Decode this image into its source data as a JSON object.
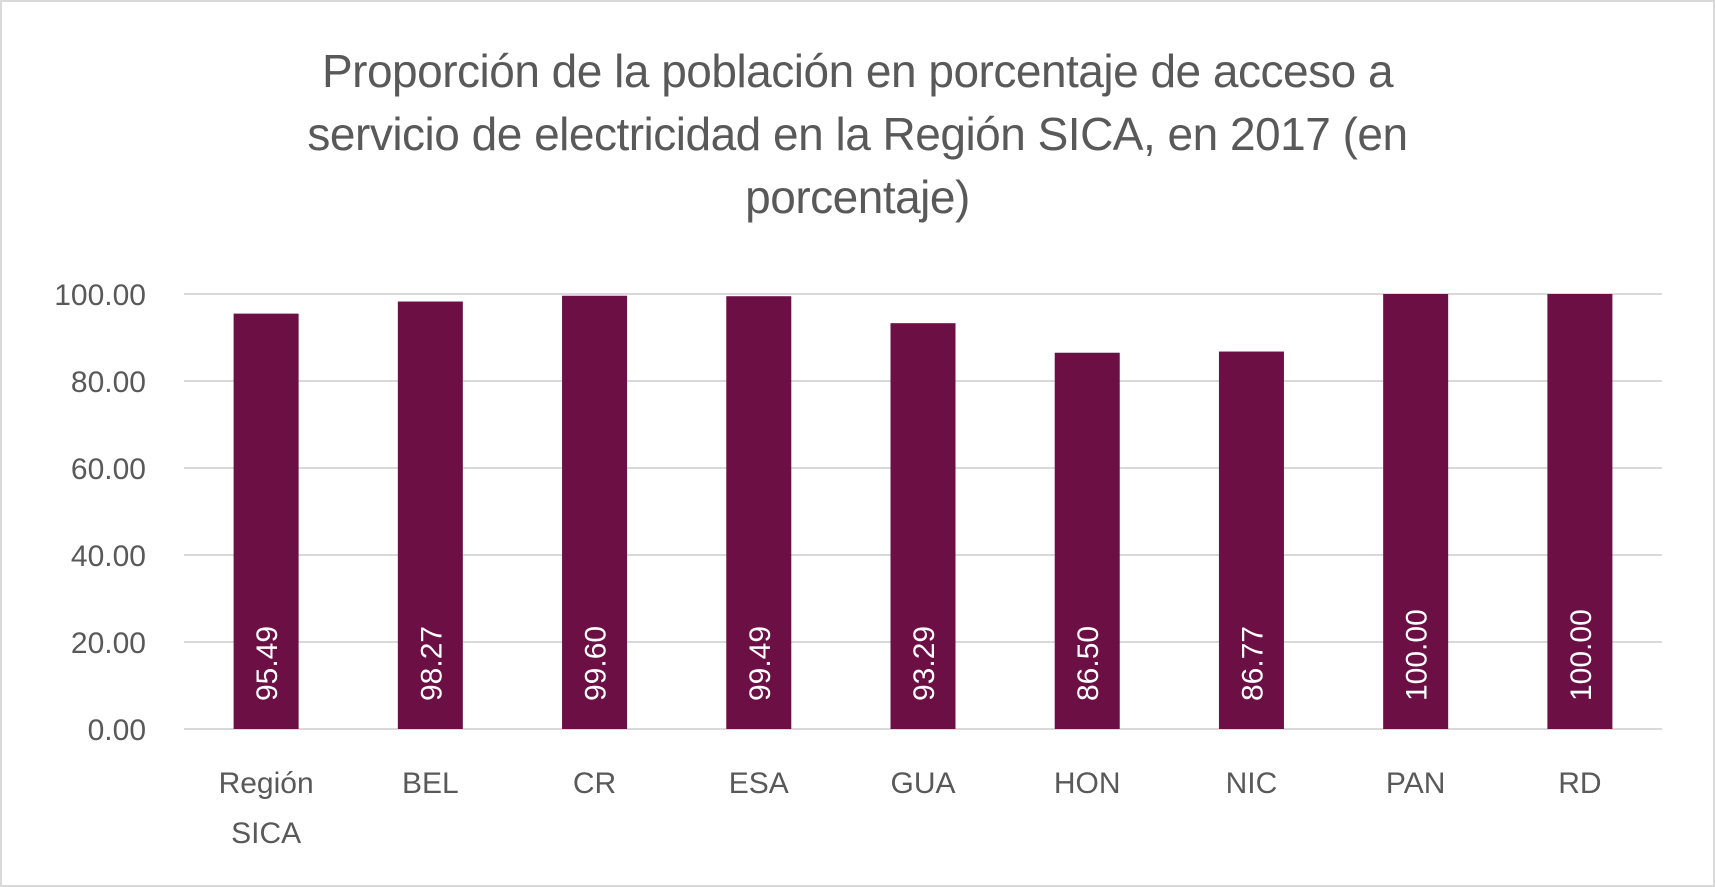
{
  "chart_data": {
    "type": "bar",
    "title": "Proporción de la población en porcentaje de acceso a servicio de electricidad en la Región SICA, en 2017 (en porcentaje)",
    "title_lines": [
      "Proporción de la población en porcentaje de acceso a",
      "servicio de electricidad en la Región SICA, en 2017 (en",
      "porcentaje)"
    ],
    "categories": [
      "Región SICA",
      "BEL",
      "CR",
      "ESA",
      "GUA",
      "HON",
      "NIC",
      "PAN",
      "RD"
    ],
    "category_lines": [
      [
        "Región",
        "SICA"
      ],
      [
        "BEL"
      ],
      [
        "CR"
      ],
      [
        "ESA"
      ],
      [
        "GUA"
      ],
      [
        "HON"
      ],
      [
        "NIC"
      ],
      [
        "PAN"
      ],
      [
        "RD"
      ]
    ],
    "values": [
      95.49,
      98.27,
      99.6,
      99.49,
      93.29,
      86.5,
      86.77,
      100.0,
      100.0
    ],
    "data_labels": [
      "95.49",
      "98.27",
      "99.60",
      "99.49",
      "93.29",
      "86.50",
      "86.77",
      "100.00",
      "100.00"
    ],
    "xlabel": "",
    "ylabel": "",
    "ylim": [
      0,
      100
    ],
    "yticks": [
      0,
      20,
      40,
      60,
      80,
      100
    ],
    "ytick_labels": [
      "0.00",
      "20.00",
      "40.00",
      "60.00",
      "80.00",
      "100.00"
    ],
    "grid": true,
    "legend": "none",
    "colors": {
      "bar": "#6b0f45",
      "grid": "#d9d9d9",
      "text": "#595959",
      "data_label": "#ffffff"
    }
  }
}
